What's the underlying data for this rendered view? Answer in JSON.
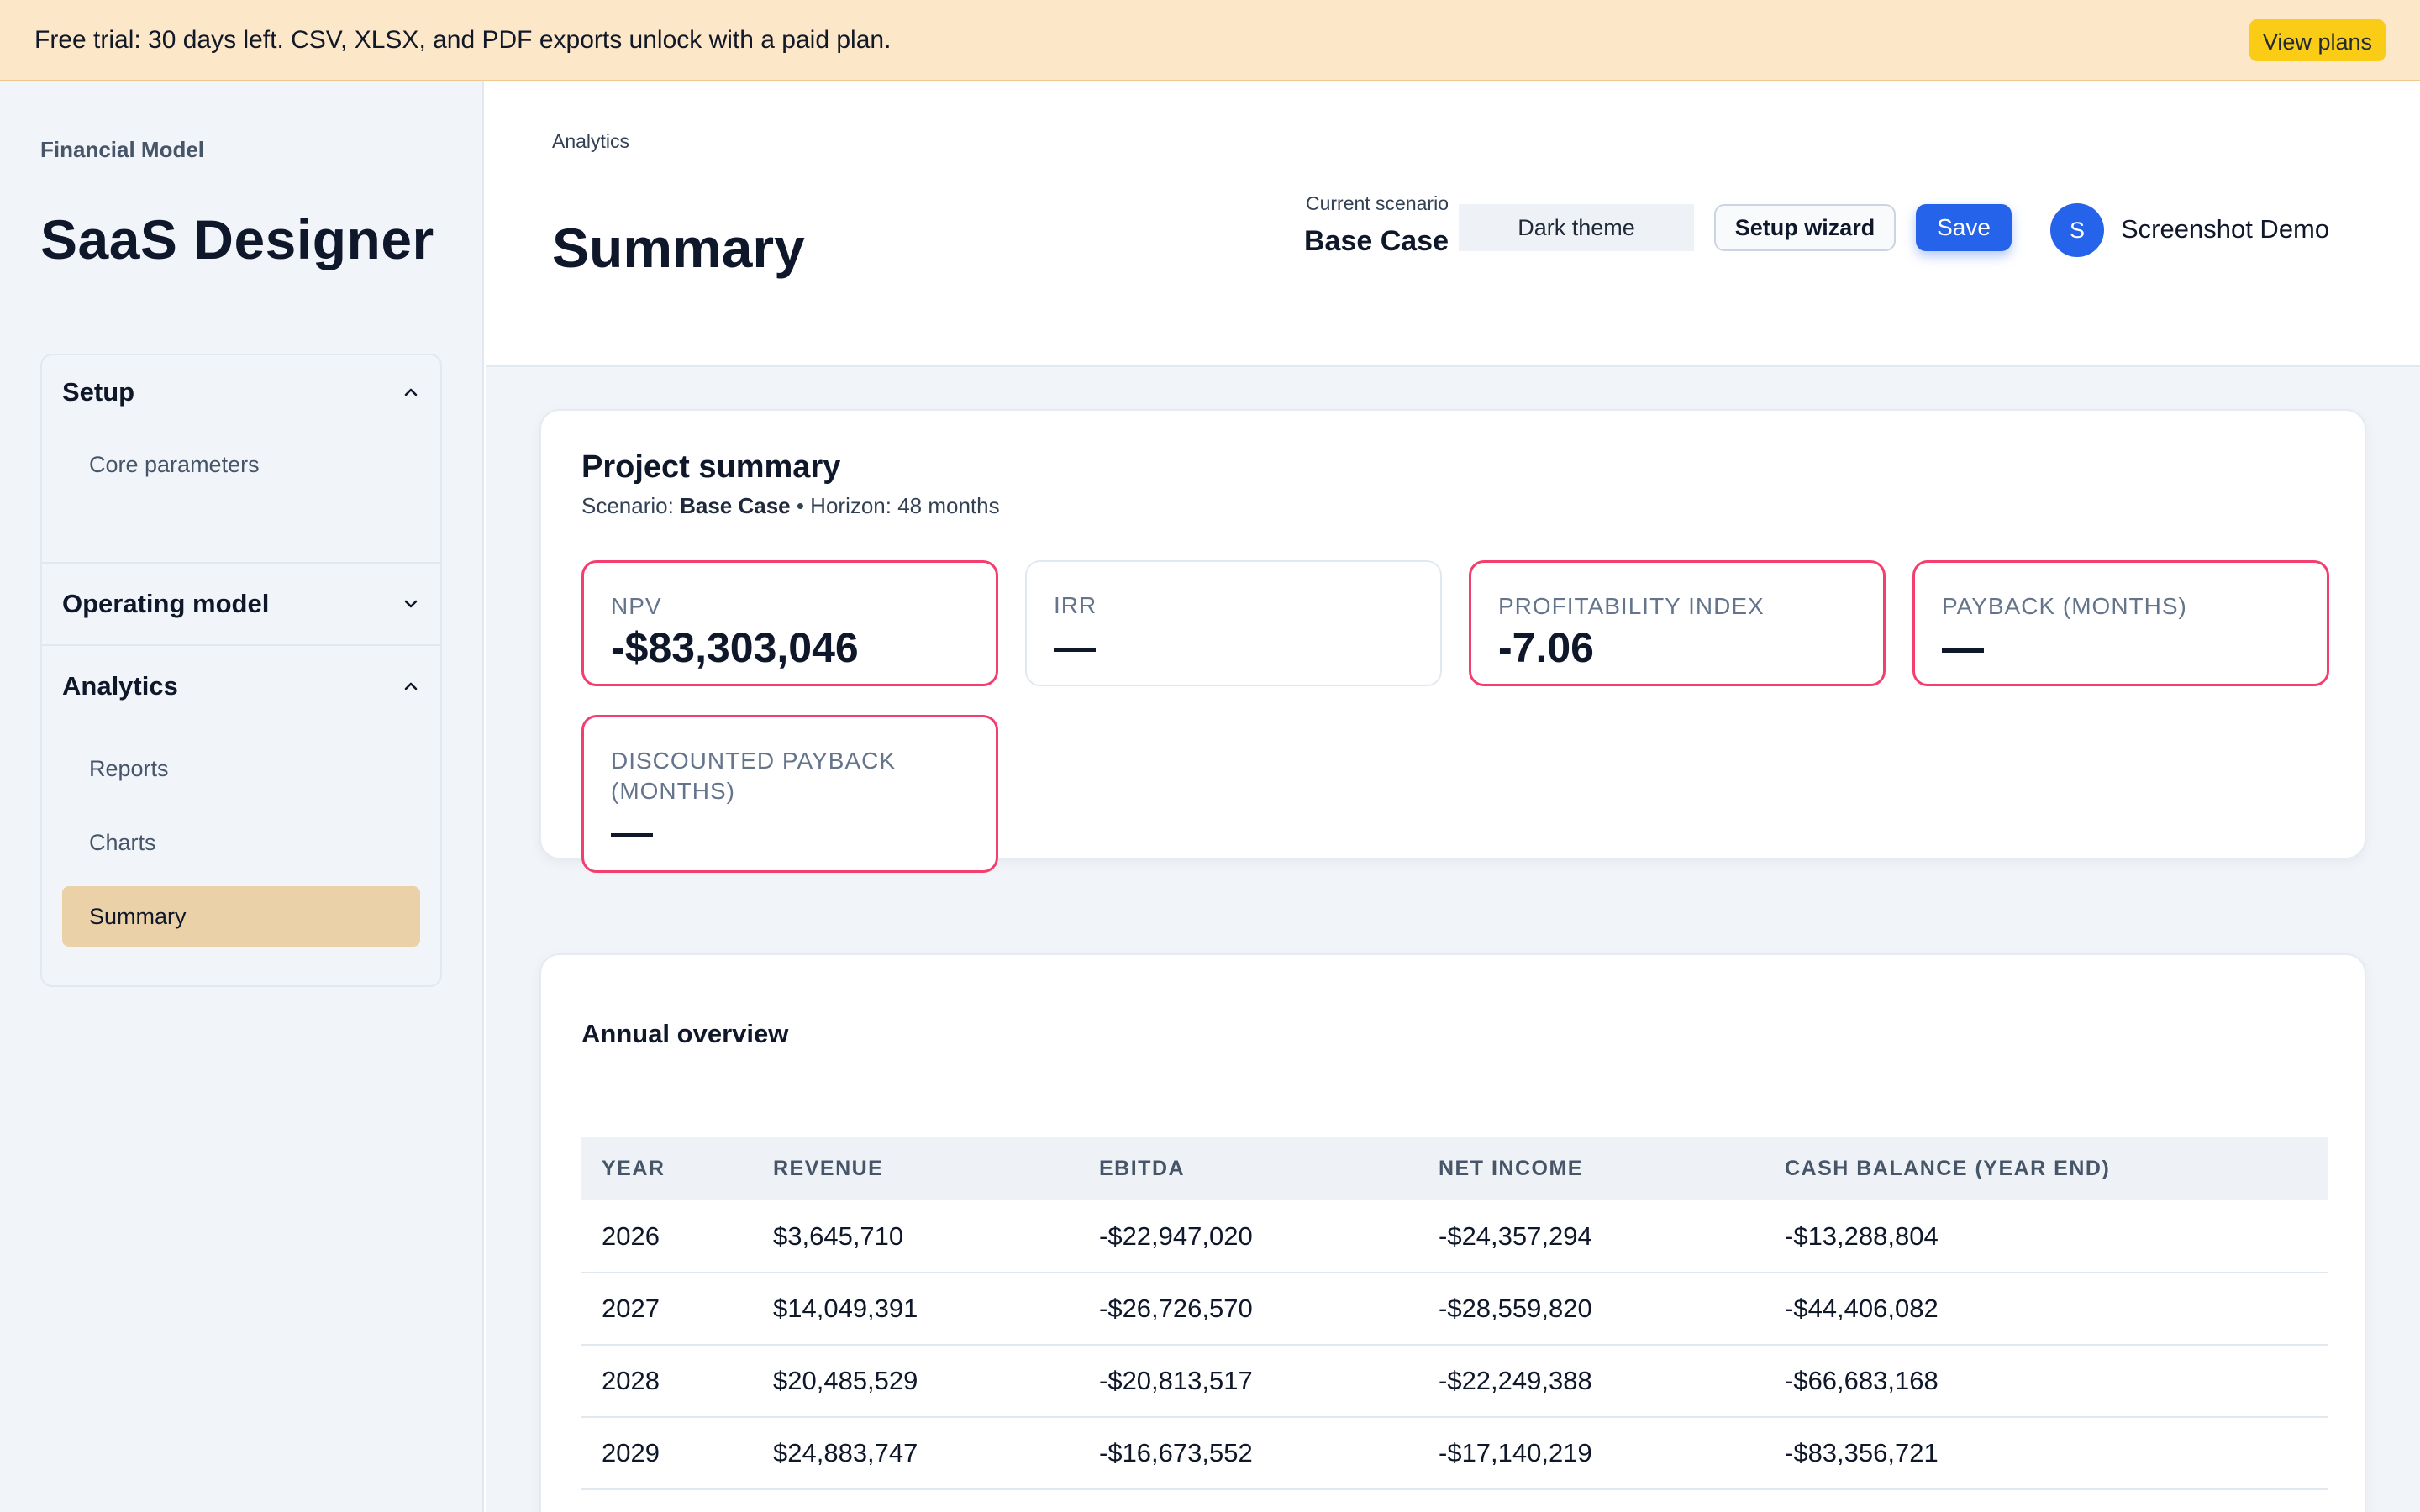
{
  "banner": {
    "text": "Free trial: 30 days left. CSV, XLSX, and PDF exports unlock with a paid plan.",
    "cta": "View plans"
  },
  "sidebar": {
    "kicker": "Financial Model",
    "title": "SaaS Designer",
    "groups": [
      {
        "label": "Setup",
        "expanded": true,
        "items": [
          "Core parameters"
        ]
      },
      {
        "label": "Operating model",
        "expanded": false,
        "items": []
      },
      {
        "label": "Analytics",
        "expanded": true,
        "items": [
          "Reports",
          "Charts",
          "Summary"
        ],
        "active": "Summary"
      }
    ]
  },
  "header": {
    "breadcrumb": "Analytics",
    "title": "Summary",
    "scenario_label": "Current scenario",
    "scenario_value": "Base Case",
    "theme_button": "Dark theme",
    "wizard_button": "Setup wizard",
    "save_button": "Save",
    "user_initial": "S",
    "user_name": "Screenshot Demo"
  },
  "summary": {
    "title": "Project summary",
    "scenario_prefix": "Scenario: ",
    "scenario": "Base Case",
    "horizon": " • Horizon: 48 months",
    "metrics": [
      {
        "label": "NPV",
        "value": "-$83,303,046",
        "alert": true
      },
      {
        "label": "IRR",
        "value": "—",
        "alert": false
      },
      {
        "label": "PROFITABILITY INDEX",
        "value": "-7.06",
        "alert": true
      },
      {
        "label": "PAYBACK (MONTHS)",
        "value": "—",
        "alert": true
      },
      {
        "label": "DISCOUNTED PAYBACK (MONTHS)",
        "value": "—",
        "alert": true
      }
    ]
  },
  "annual": {
    "title": "Annual overview",
    "columns": [
      "YEAR",
      "REVENUE",
      "EBITDA",
      "NET INCOME",
      "CASH BALANCE (YEAR END)"
    ],
    "rows": [
      [
        "2026",
        "$3,645,710",
        "-$22,947,020",
        "-$24,357,294",
        "-$13,288,804"
      ],
      [
        "2027",
        "$14,049,391",
        "-$26,726,570",
        "-$28,559,820",
        "-$44,406,082"
      ],
      [
        "2028",
        "$20,485,529",
        "-$20,813,517",
        "-$22,249,388",
        "-$66,683,168"
      ],
      [
        "2029",
        "$24,883,747",
        "-$16,673,552",
        "-$17,140,219",
        "-$83,356,721"
      ]
    ]
  },
  "colors": {
    "accent": "#2563eb",
    "alert": "#f43f6e",
    "banner": "#fde7c9",
    "active_nav": "#ebd1a8"
  },
  "icons": {
    "expanded": "chevron-up-icon",
    "collapsed": "chevron-down-icon"
  }
}
